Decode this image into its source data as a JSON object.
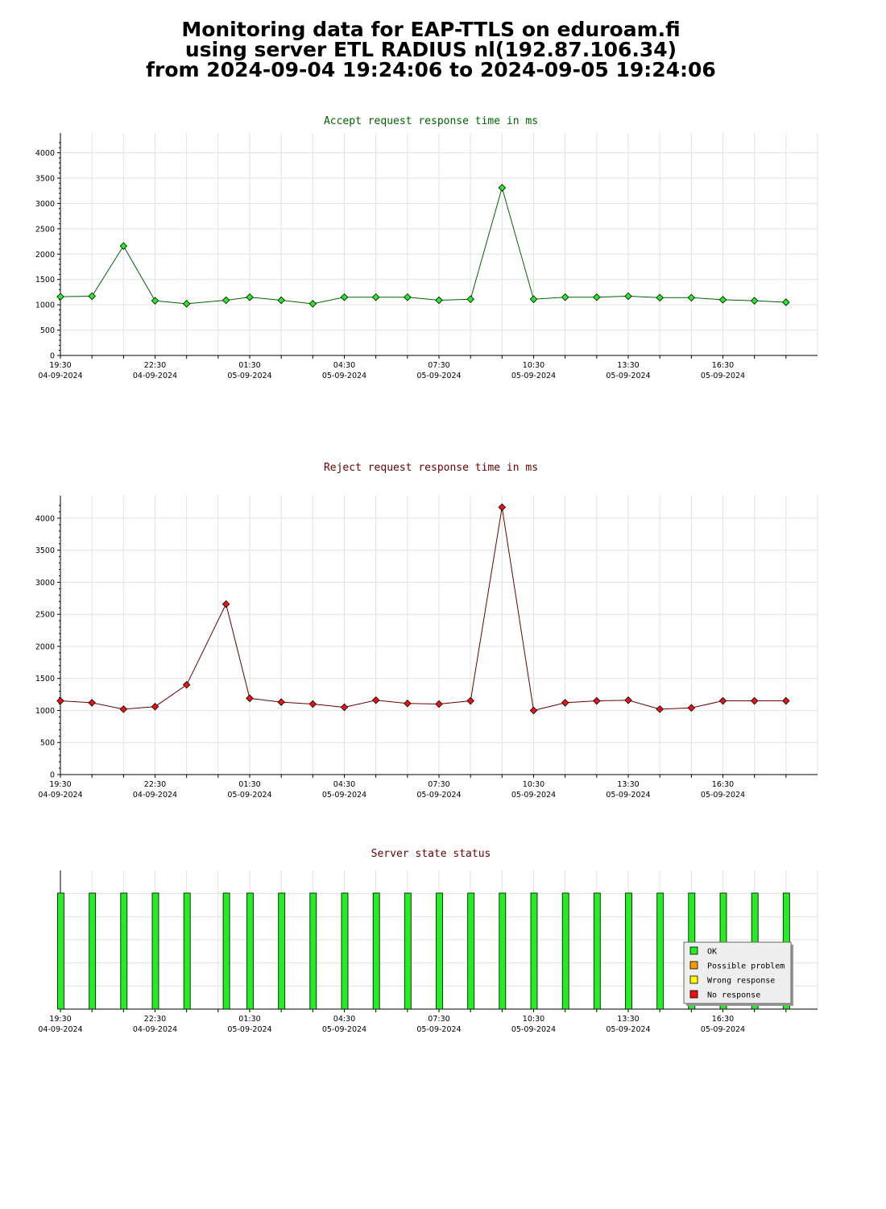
{
  "header": {
    "line1": "Monitoring data for EAP-TTLS on eduroam.fi",
    "line2": "using server ETL RADIUS nl(192.87.106.34)",
    "line3": "from 2024-09-04 19:24:06 to 2024-09-05 19:24:06"
  },
  "x_ticks": [
    {
      "time": "19:30",
      "date": "04-09-2024"
    },
    {
      "time": "22:30",
      "date": "04-09-2024"
    },
    {
      "time": "01:30",
      "date": "05-09-2024"
    },
    {
      "time": "04:30",
      "date": "05-09-2024"
    },
    {
      "time": "07:30",
      "date": "05-09-2024"
    },
    {
      "time": "10:30",
      "date": "05-09-2024"
    },
    {
      "time": "13:30",
      "date": "05-09-2024"
    },
    {
      "time": "16:30",
      "date": "05-09-2024"
    }
  ],
  "chart_data": [
    {
      "type": "line",
      "title": "Accept request response time in ms",
      "title_color": "#006400",
      "marker_color": "#22ee22",
      "line_color": "#006400",
      "ylim": [
        0,
        4200
      ],
      "yticks": [
        0,
        500,
        1000,
        1500,
        2000,
        2500,
        3000,
        3500,
        4000
      ],
      "x": [
        "2024-09-04 19:30",
        "2024-09-04 20:30",
        "2024-09-04 21:30",
        "2024-09-04 22:30",
        "2024-09-04 23:30",
        "2024-09-05 00:45",
        "2024-09-05 01:30",
        "2024-09-05 02:30",
        "2024-09-05 03:30",
        "2024-09-05 04:30",
        "2024-09-05 05:30",
        "2024-09-05 06:30",
        "2024-09-05 07:30",
        "2024-09-05 08:30",
        "2024-09-05 09:30",
        "2024-09-05 10:30",
        "2024-09-05 11:30",
        "2024-09-05 12:30",
        "2024-09-05 13:30",
        "2024-09-05 14:30",
        "2024-09-05 15:30",
        "2024-09-05 16:30",
        "2024-09-05 17:30",
        "2024-09-05 18:30"
      ],
      "values": [
        1160,
        1170,
        2160,
        1080,
        1020,
        1090,
        1150,
        1090,
        1020,
        1150,
        1150,
        1150,
        1090,
        1110,
        3310,
        1110,
        1150,
        1150,
        1170,
        1140,
        1140,
        1100,
        1080,
        1050
      ],
      "grid": true
    },
    {
      "type": "line",
      "title": "Reject request response time in ms",
      "title_color": "#6b0000",
      "marker_color": "#ee1111",
      "line_color": "#6b0000",
      "ylim": [
        0,
        4200
      ],
      "yticks": [
        0,
        500,
        1000,
        1500,
        2000,
        2500,
        3000,
        3500,
        4000
      ],
      "x": [
        "2024-09-04 19:30",
        "2024-09-04 20:30",
        "2024-09-04 21:30",
        "2024-09-04 22:30",
        "2024-09-04 23:30",
        "2024-09-05 00:45",
        "2024-09-05 01:30",
        "2024-09-05 02:30",
        "2024-09-05 03:30",
        "2024-09-05 04:30",
        "2024-09-05 05:30",
        "2024-09-05 06:30",
        "2024-09-05 07:30",
        "2024-09-05 08:30",
        "2024-09-05 09:30",
        "2024-09-05 10:30",
        "2024-09-05 11:30",
        "2024-09-05 12:30",
        "2024-09-05 13:30",
        "2024-09-05 14:30",
        "2024-09-05 15:30",
        "2024-09-05 16:30",
        "2024-09-05 17:30",
        "2024-09-05 18:30"
      ],
      "values": [
        1150,
        1120,
        1020,
        1060,
        1400,
        2660,
        1190,
        1130,
        1100,
        1050,
        1160,
        1110,
        1100,
        1150,
        4170,
        1000,
        1120,
        1150,
        1160,
        1020,
        1040,
        1150,
        1150,
        1150
      ],
      "grid": true
    },
    {
      "type": "bar",
      "title": "Server state status",
      "title_color": "#6b0000",
      "x": [
        "2024-09-04 19:30",
        "2024-09-04 20:30",
        "2024-09-04 21:30",
        "2024-09-04 22:30",
        "2024-09-04 23:30",
        "2024-09-05 00:45",
        "2024-09-05 01:30",
        "2024-09-05 02:30",
        "2024-09-05 03:30",
        "2024-09-05 04:30",
        "2024-09-05 05:30",
        "2024-09-05 06:30",
        "2024-09-05 07:30",
        "2024-09-05 08:30",
        "2024-09-05 09:30",
        "2024-09-05 10:30",
        "2024-09-05 11:30",
        "2024-09-05 12:30",
        "2024-09-05 13:30",
        "2024-09-05 14:30",
        "2024-09-05 15:30",
        "2024-09-05 16:30",
        "2024-09-05 17:30",
        "2024-09-05 18:30"
      ],
      "states": [
        "OK",
        "OK",
        "OK",
        "OK",
        "OK",
        "OK",
        "OK",
        "OK",
        "OK",
        "OK",
        "OK",
        "OK",
        "OK",
        "OK",
        "OK",
        "OK",
        "OK",
        "OK",
        "OK",
        "OK",
        "OK",
        "OK",
        "OK",
        "OK"
      ],
      "legend": [
        {
          "label": "OK",
          "color": "#22ee22"
        },
        {
          "label": "Possible problem",
          "color": "#ff9900"
        },
        {
          "label": "Wrong response",
          "color": "#ffff00"
        },
        {
          "label": "No response",
          "color": "#ee1111"
        }
      ],
      "legend_position": "bottom-right",
      "grid": true
    }
  ]
}
